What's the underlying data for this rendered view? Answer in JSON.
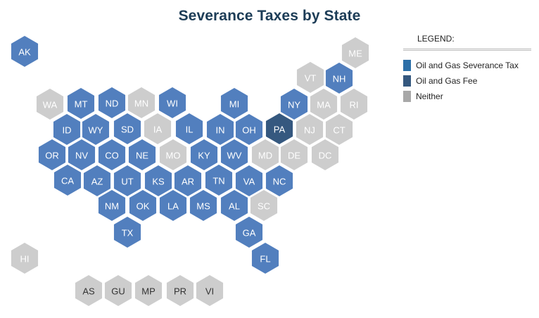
{
  "title": "Severance Taxes by State",
  "legend": {
    "title": "LEGEND:",
    "items": [
      {
        "label": "Oil and Gas Severance Tax",
        "color": "#2c6fa8"
      },
      {
        "label": "Oil and Gas Fee",
        "color": "#35587f"
      },
      {
        "label": "Neither",
        "color": "#a8a8a8"
      }
    ]
  },
  "colors": {
    "tax": "#527fbe",
    "fee": "#35587f",
    "neither": "#cdcdcd"
  },
  "states": [
    {
      "code": "AK",
      "category": "tax"
    },
    {
      "code": "ME",
      "category": "neither"
    },
    {
      "code": "VT",
      "category": "neither"
    },
    {
      "code": "NH",
      "category": "tax"
    },
    {
      "code": "WA",
      "category": "neither"
    },
    {
      "code": "MT",
      "category": "tax"
    },
    {
      "code": "ND",
      "category": "tax"
    },
    {
      "code": "MN",
      "category": "neither"
    },
    {
      "code": "WI",
      "category": "tax"
    },
    {
      "code": "MI",
      "category": "tax"
    },
    {
      "code": "NY",
      "category": "tax"
    },
    {
      "code": "MA",
      "category": "neither"
    },
    {
      "code": "RI",
      "category": "neither"
    },
    {
      "code": "ID",
      "category": "tax"
    },
    {
      "code": "WY",
      "category": "tax"
    },
    {
      "code": "SD",
      "category": "tax"
    },
    {
      "code": "IA",
      "category": "neither"
    },
    {
      "code": "IL",
      "category": "tax"
    },
    {
      "code": "IN",
      "category": "tax"
    },
    {
      "code": "OH",
      "category": "tax"
    },
    {
      "code": "PA",
      "category": "fee"
    },
    {
      "code": "NJ",
      "category": "neither"
    },
    {
      "code": "CT",
      "category": "neither"
    },
    {
      "code": "OR",
      "category": "tax"
    },
    {
      "code": "NV",
      "category": "tax"
    },
    {
      "code": "CO",
      "category": "tax"
    },
    {
      "code": "NE",
      "category": "tax"
    },
    {
      "code": "MO",
      "category": "neither"
    },
    {
      "code": "KY",
      "category": "tax"
    },
    {
      "code": "WV",
      "category": "tax"
    },
    {
      "code": "MD",
      "category": "neither"
    },
    {
      "code": "DE",
      "category": "neither"
    },
    {
      "code": "DC",
      "category": "neither"
    },
    {
      "code": "CA",
      "category": "tax"
    },
    {
      "code": "AZ",
      "category": "tax"
    },
    {
      "code": "UT",
      "category": "tax"
    },
    {
      "code": "KS",
      "category": "tax"
    },
    {
      "code": "AR",
      "category": "tax"
    },
    {
      "code": "TN",
      "category": "tax"
    },
    {
      "code": "VA",
      "category": "tax"
    },
    {
      "code": "NC",
      "category": "tax"
    },
    {
      "code": "NM",
      "category": "tax"
    },
    {
      "code": "OK",
      "category": "tax"
    },
    {
      "code": "LA",
      "category": "tax"
    },
    {
      "code": "MS",
      "category": "tax"
    },
    {
      "code": "AL",
      "category": "tax"
    },
    {
      "code": "SC",
      "category": "neither"
    },
    {
      "code": "TX",
      "category": "tax"
    },
    {
      "code": "GA",
      "category": "tax"
    },
    {
      "code": "HI",
      "category": "neither"
    },
    {
      "code": "FL",
      "category": "tax"
    },
    {
      "code": "AS",
      "category": "neither"
    },
    {
      "code": "GU",
      "category": "neither"
    },
    {
      "code": "MP",
      "category": "neither"
    },
    {
      "code": "PR",
      "category": "neither"
    },
    {
      "code": "VI",
      "category": "neither"
    }
  ]
}
